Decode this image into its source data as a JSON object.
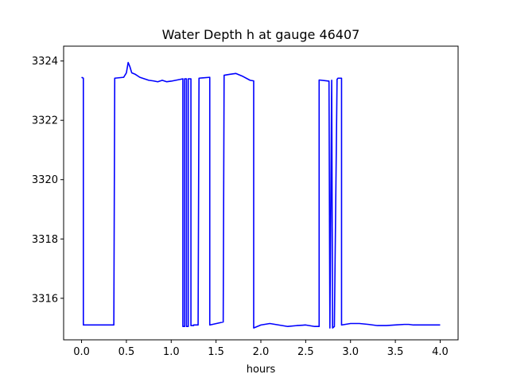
{
  "chart_data": {
    "type": "line",
    "title": "Water Depth h at gauge 46407",
    "xlabel": "hours",
    "ylabel": "",
    "xlim": [
      -0.2,
      4.2
    ],
    "ylim": [
      3314.6,
      3324.5
    ],
    "xticks": [
      0.0,
      0.5,
      1.0,
      1.5,
      2.0,
      2.5,
      3.0,
      3.5,
      4.0
    ],
    "xtick_labels": [
      "0.0",
      "0.5",
      "1.0",
      "1.5",
      "2.0",
      "2.5",
      "3.0",
      "3.5",
      "4.0"
    ],
    "yticks": [
      3316,
      3318,
      3320,
      3322,
      3324
    ],
    "ytick_labels": [
      "3316",
      "3318",
      "3320",
      "3322",
      "3324"
    ],
    "grid": false,
    "series": [
      {
        "color": "#0000ff",
        "x": [
          0.0,
          0.02,
          0.02,
          0.36,
          0.37,
          0.47,
          0.5,
          0.52,
          0.54,
          0.56,
          0.6,
          0.65,
          0.7,
          0.75,
          0.8,
          0.85,
          0.9,
          0.95,
          1.0,
          1.05,
          1.1,
          1.13,
          1.13,
          1.15,
          1.15,
          1.17,
          1.17,
          1.19,
          1.19,
          1.22,
          1.22,
          1.25,
          1.25,
          1.3,
          1.31,
          1.43,
          1.43,
          1.58,
          1.59,
          1.65,
          1.72,
          1.8,
          1.88,
          1.92,
          1.92,
          2.0,
          2.1,
          2.2,
          2.3,
          2.4,
          2.5,
          2.6,
          2.65,
          2.65,
          2.76,
          2.77,
          2.79,
          2.8,
          2.82,
          2.85,
          2.86,
          2.9,
          2.9,
          3.0,
          3.1,
          3.2,
          3.3,
          3.4,
          3.5,
          3.6,
          3.65,
          3.7,
          3.8,
          4.0
        ],
        "y": [
          3323.45,
          3323.42,
          3315.1,
          3315.1,
          3323.42,
          3323.45,
          3323.6,
          3323.95,
          3323.8,
          3323.6,
          3323.55,
          3323.45,
          3323.4,
          3323.35,
          3323.33,
          3323.3,
          3323.35,
          3323.3,
          3323.32,
          3323.35,
          3323.38,
          3323.4,
          3315.05,
          3315.05,
          3323.4,
          3323.4,
          3315.05,
          3315.05,
          3323.4,
          3323.4,
          3315.08,
          3315.08,
          3315.1,
          3315.1,
          3323.42,
          3323.45,
          3315.1,
          3315.2,
          3323.52,
          3323.55,
          3323.58,
          3323.48,
          3323.35,
          3323.33,
          3315.0,
          3315.1,
          3315.15,
          3315.1,
          3315.05,
          3315.08,
          3315.1,
          3315.05,
          3315.05,
          3323.36,
          3323.32,
          3315.0,
          3323.35,
          3315.0,
          3315.05,
          3323.38,
          3323.42,
          3323.42,
          3315.1,
          3315.15,
          3315.15,
          3315.12,
          3315.08,
          3315.08,
          3315.1,
          3315.12,
          3315.12,
          3315.1,
          3315.1,
          3315.1
        ]
      }
    ]
  }
}
